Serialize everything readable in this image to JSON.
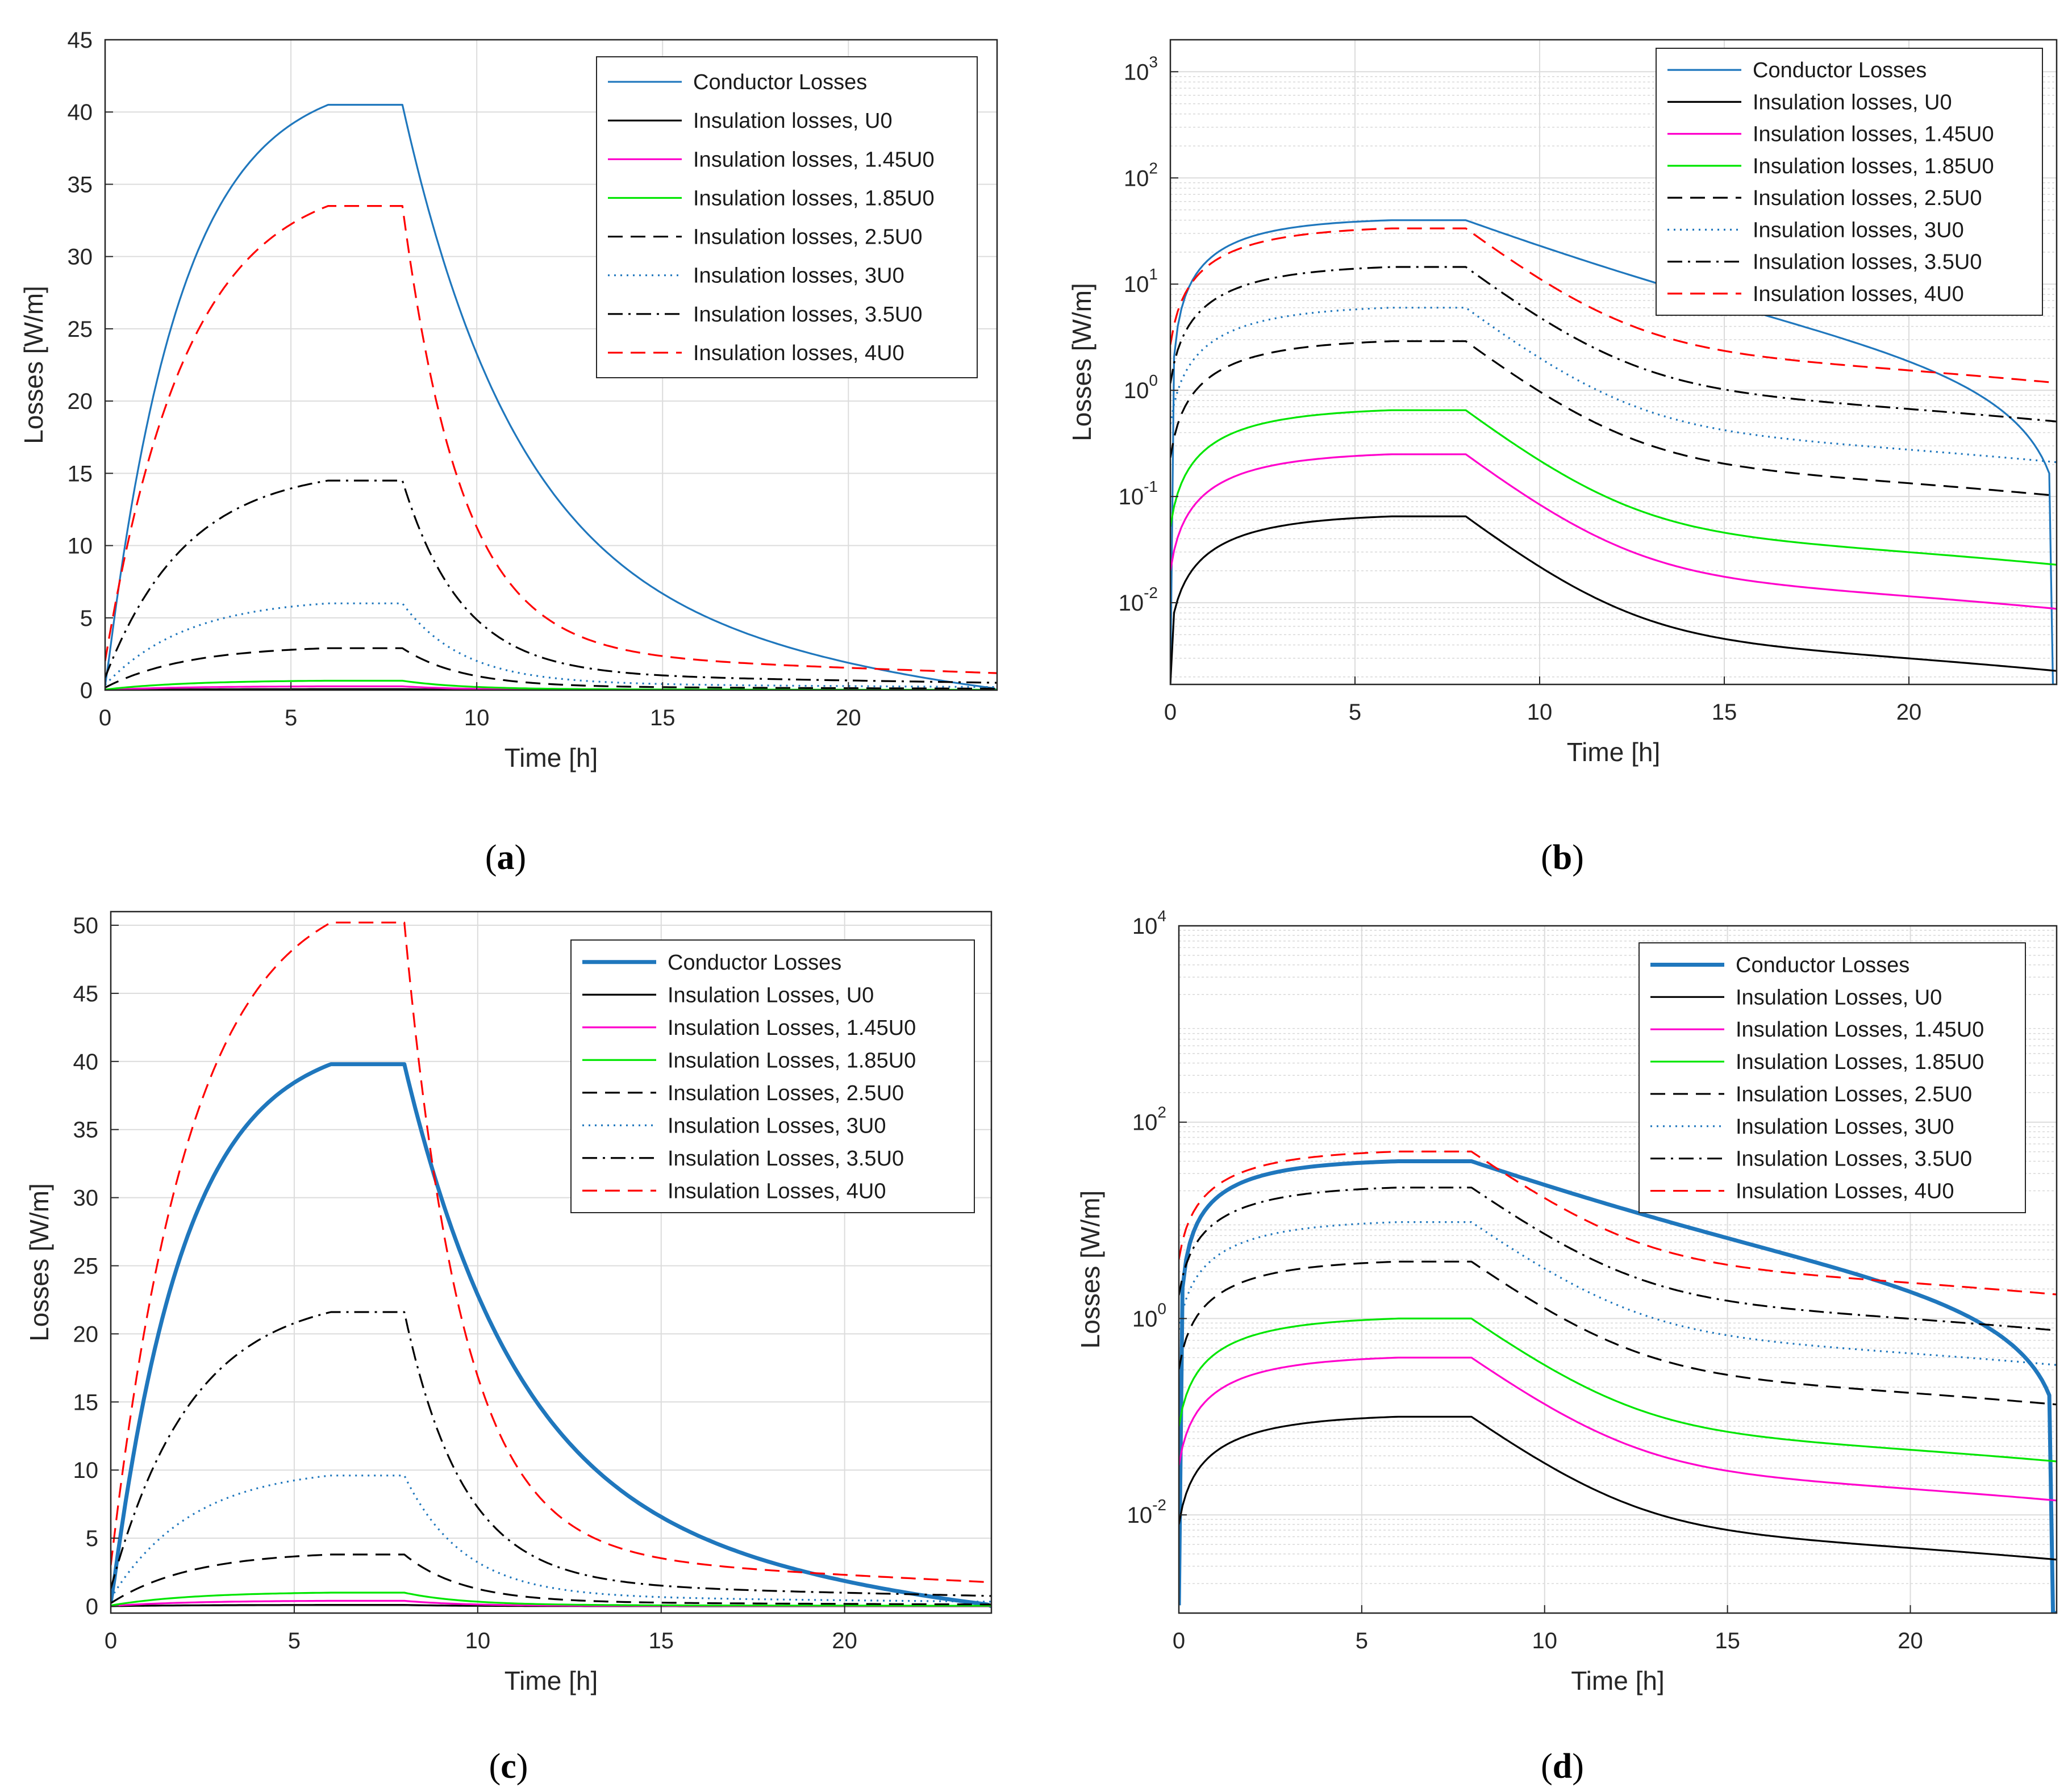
{
  "chart_data": [
    {
      "panel": "(a)",
      "caption_letter": "a",
      "type": "line",
      "yscale": "linear",
      "xlabel": "Time [h]",
      "ylabel": "Losses [W/m]",
      "xlim": [
        0,
        24
      ],
      "ylim": [
        0,
        45
      ],
      "xticks": [
        0,
        5,
        10,
        15,
        20
      ],
      "yticks": [
        0,
        5,
        10,
        15,
        20,
        25,
        30,
        35,
        40,
        45
      ],
      "grid": true,
      "legend_position": "top-right",
      "series": [
        {
          "name": "Conductor Losses",
          "color": "#1f77bd",
          "dash": "solid",
          "width": "thin",
          "peak": 40.5
        },
        {
          "name": "Insulation losses, U0",
          "color": "#000000",
          "dash": "solid",
          "width": "thin",
          "peak": 0.07
        },
        {
          "name": "Insulation losses, 1.45U0",
          "color": "#ff00cc",
          "dash": "solid",
          "width": "thin",
          "peak": 0.26
        },
        {
          "name": "Insulation losses, 1.85U0",
          "color": "#00e600",
          "dash": "solid",
          "width": "thin",
          "peak": 0.65
        },
        {
          "name": "Insulation losses, 2.5U0",
          "color": "#000000",
          "dash": "dash",
          "width": "thin",
          "peak": 2.9
        },
        {
          "name": "Insulation losses, 3U0",
          "color": "#1f77bd",
          "dash": "dot",
          "width": "thin",
          "peak": 6.0
        },
        {
          "name": "Insulation losses, 3.5U0",
          "color": "#000000",
          "dash": "dashdot",
          "width": "thin",
          "peak": 14.5
        },
        {
          "name": "Insulation losses, 4U0",
          "color": "#ff0000",
          "dash": "dash",
          "width": "thin",
          "peak": 33.5
        }
      ]
    },
    {
      "panel": "(b)",
      "caption_letter": "b",
      "type": "line",
      "yscale": "log",
      "xlabel": "Time [h]",
      "ylabel": "Losses [W/m]",
      "xlim": [
        0,
        24
      ],
      "ylim": [
        0.0017,
        2000
      ],
      "xticks": [
        0,
        5,
        10,
        15,
        20
      ],
      "yticks": [
        0.01,
        0.1,
        1,
        10,
        100,
        1000
      ],
      "ytick_bases": [
        "10",
        "10",
        "10",
        "10",
        "10",
        "10"
      ],
      "ytick_exps": [
        "-2",
        "-1",
        "0",
        "1",
        "2",
        "3"
      ],
      "grid": true,
      "legend_position": "top-right",
      "series": [
        {
          "name": "Conductor Losses",
          "color": "#1f77bd",
          "dash": "solid",
          "width": "thin",
          "peak": 40
        },
        {
          "name": "Insulation losses, U0",
          "color": "#000000",
          "dash": "solid",
          "width": "thin",
          "peak": 0.065
        },
        {
          "name": "Insulation losses, 1.45U0",
          "color": "#ff00cc",
          "dash": "solid",
          "width": "thin",
          "peak": 0.25
        },
        {
          "name": "Insulation losses, 1.85U0",
          "color": "#00e600",
          "dash": "solid",
          "width": "thin",
          "peak": 0.65
        },
        {
          "name": "Insulation losses, 2.5U0",
          "color": "#000000",
          "dash": "dash",
          "width": "thin",
          "peak": 2.9
        },
        {
          "name": "Insulation losses, 3U0",
          "color": "#1f77bd",
          "dash": "dot",
          "width": "thin",
          "peak": 6.0
        },
        {
          "name": "Insulation losses, 3.5U0",
          "color": "#000000",
          "dash": "dashdot",
          "width": "thin",
          "peak": 14.5
        },
        {
          "name": "Insulation losses, 4U0",
          "color": "#ff0000",
          "dash": "dash",
          "width": "thin",
          "peak": 33.5
        }
      ]
    },
    {
      "panel": "(c)",
      "caption_letter": "c",
      "type": "line",
      "yscale": "linear",
      "xlabel": "Time [h]",
      "ylabel": "Losses [W/m]",
      "xlim": [
        0,
        24
      ],
      "ylim": [
        -0.5,
        51
      ],
      "xticks": [
        0,
        5,
        10,
        15,
        20
      ],
      "yticks": [
        0,
        5,
        10,
        15,
        20,
        25,
        30,
        35,
        40,
        45,
        50
      ],
      "grid": true,
      "legend_position": "top-right",
      "series": [
        {
          "name": "Conductor Losses",
          "color": "#1f77bd",
          "dash": "solid",
          "width": "thick",
          "peak": 39.8
        },
        {
          "name": "Insulation Losses, U0",
          "color": "#000000",
          "dash": "solid",
          "width": "thin",
          "peak": 0.1
        },
        {
          "name": "Insulation Losses, 1.45U0",
          "color": "#ff00cc",
          "dash": "solid",
          "width": "thin",
          "peak": 0.4
        },
        {
          "name": "Insulation Losses, 1.85U0",
          "color": "#00e600",
          "dash": "solid",
          "width": "thin",
          "peak": 1.0
        },
        {
          "name": "Insulation Losses, 2.5U0",
          "color": "#000000",
          "dash": "dash",
          "width": "thin",
          "peak": 3.8
        },
        {
          "name": "Insulation Losses, 3U0",
          "color": "#1f77bd",
          "dash": "dot",
          "width": "thin",
          "peak": 9.6
        },
        {
          "name": "Insulation Losses, 3.5U0",
          "color": "#000000",
          "dash": "dashdot",
          "width": "thin",
          "peak": 21.6
        },
        {
          "name": "Insulation Losses, 4U0",
          "color": "#ff0000",
          "dash": "dash",
          "width": "thin",
          "peak": 50.2
        }
      ]
    },
    {
      "panel": "(d)",
      "caption_letter": "d",
      "type": "line",
      "yscale": "log",
      "xlabel": "Time [h]",
      "ylabel": "Losses [W/m]",
      "xlim": [
        0,
        24
      ],
      "ylim": [
        0.001,
        10000
      ],
      "xticks": [
        0,
        5,
        10,
        15,
        20
      ],
      "yticks": [
        0.01,
        1,
        100,
        10000
      ],
      "ytick_bases": [
        "10",
        "10",
        "10",
        "10"
      ],
      "ytick_exps": [
        "-2",
        "0",
        "2",
        "4"
      ],
      "grid": true,
      "legend_position": "top-right",
      "series": [
        {
          "name": "Conductor Losses",
          "color": "#1f77bd",
          "dash": "solid",
          "width": "thick",
          "peak": 40
        },
        {
          "name": "Insulation Losses, U0",
          "color": "#000000",
          "dash": "solid",
          "width": "thin",
          "peak": 0.1
        },
        {
          "name": "Insulation Losses, 1.45U0",
          "color": "#ff00cc",
          "dash": "solid",
          "width": "thin",
          "peak": 0.4
        },
        {
          "name": "Insulation Losses, 1.85U0",
          "color": "#00e600",
          "dash": "solid",
          "width": "thin",
          "peak": 1.0
        },
        {
          "name": "Insulation Losses, 2.5U0",
          "color": "#000000",
          "dash": "dash",
          "width": "thin",
          "peak": 3.8
        },
        {
          "name": "Insulation Losses, 3U0",
          "color": "#1f77bd",
          "dash": "dot",
          "width": "thin",
          "peak": 9.6
        },
        {
          "name": "Insulation Losses, 3.5U0",
          "color": "#000000",
          "dash": "dashdot",
          "width": "thin",
          "peak": 21.6
        },
        {
          "name": "Insulation Losses, 4U0",
          "color": "#ff0000",
          "dash": "dash",
          "width": "thin",
          "peak": 50.2
        }
      ]
    }
  ]
}
